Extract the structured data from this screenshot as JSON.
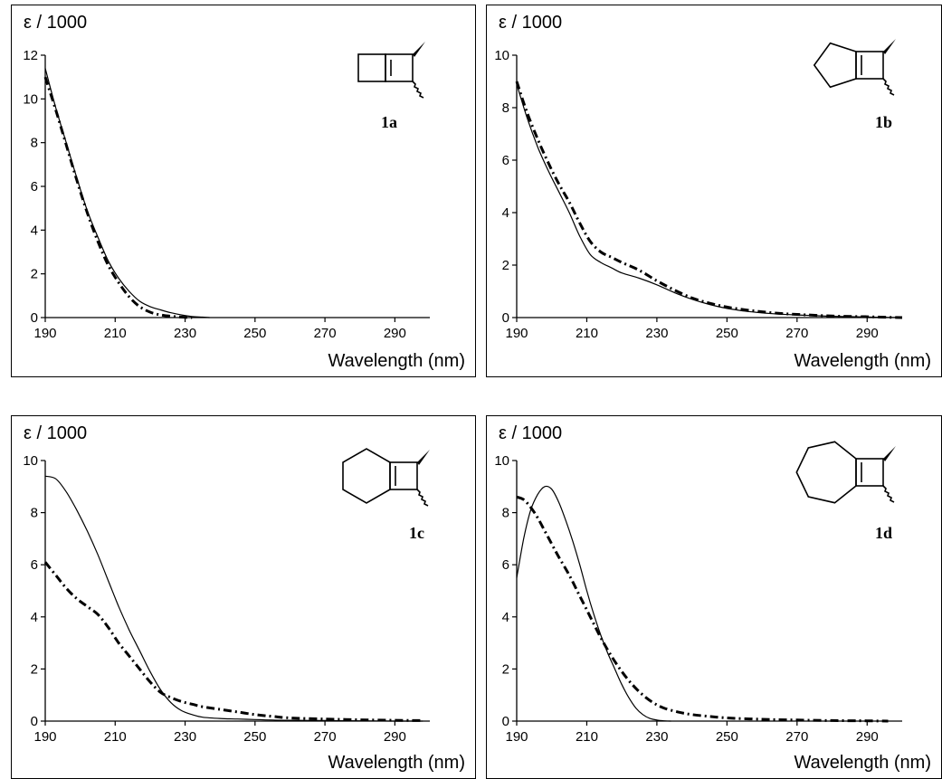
{
  "chart_data": [
    {
      "type": "line",
      "compound_label": "1a",
      "xlabel": "Wavelength (nm)",
      "ylabel": "ε / 1000",
      "xlim": [
        190,
        300
      ],
      "ylim": [
        0,
        12
      ],
      "x_ticks": [
        190,
        210,
        230,
        250,
        270,
        290
      ],
      "y_ticks": [
        0,
        2,
        4,
        6,
        8,
        10,
        12
      ],
      "grid": false,
      "legend": "none",
      "series": [
        {
          "style": "solid",
          "x": [
            190,
            193,
            196,
            199,
            202,
            205,
            208,
            211,
            214,
            217,
            220,
            223,
            226,
            229,
            232,
            235,
            237
          ],
          "y": [
            11.4,
            9.6,
            8.0,
            6.4,
            4.9,
            3.7,
            2.6,
            1.8,
            1.2,
            0.75,
            0.5,
            0.35,
            0.22,
            0.12,
            0.05,
            0.02,
            0.0
          ]
        },
        {
          "style": "dash-dot",
          "x": [
            190,
            193,
            196,
            199,
            202,
            205,
            208,
            211,
            214,
            217,
            220,
            223,
            226,
            229,
            232
          ],
          "y": [
            11.0,
            9.5,
            7.9,
            6.3,
            4.8,
            3.5,
            2.4,
            1.6,
            0.95,
            0.5,
            0.25,
            0.12,
            0.06,
            0.02,
            0.0
          ]
        }
      ]
    },
    {
      "type": "line",
      "compound_label": "1b",
      "xlabel": "Wavelength (nm)",
      "ylabel": "ε / 1000",
      "xlim": [
        190,
        300
      ],
      "ylim": [
        0,
        10
      ],
      "x_ticks": [
        190,
        210,
        230,
        250,
        270,
        290
      ],
      "y_ticks": [
        0,
        2,
        4,
        6,
        8,
        10
      ],
      "grid": false,
      "legend": "none",
      "series": [
        {
          "style": "solid",
          "x": [
            190,
            193,
            196,
            199,
            202,
            205,
            208,
            211,
            214,
            217,
            220,
            225,
            230,
            235,
            240,
            245,
            250,
            255,
            260,
            265,
            270,
            280,
            290,
            300
          ],
          "y": [
            8.9,
            7.6,
            6.5,
            5.6,
            4.8,
            4.0,
            3.1,
            2.4,
            2.1,
            1.9,
            1.7,
            1.5,
            1.25,
            0.95,
            0.7,
            0.5,
            0.35,
            0.25,
            0.18,
            0.13,
            0.1,
            0.05,
            0.02,
            0.0
          ]
        },
        {
          "style": "dash-dot",
          "x": [
            190,
            193,
            196,
            199,
            202,
            205,
            208,
            211,
            214,
            217,
            220,
            225,
            230,
            235,
            240,
            245,
            250,
            255,
            260,
            265,
            270,
            280,
            290,
            300
          ],
          "y": [
            9.0,
            7.8,
            6.8,
            5.9,
            5.1,
            4.4,
            3.6,
            2.9,
            2.5,
            2.3,
            2.1,
            1.8,
            1.4,
            1.05,
            0.75,
            0.55,
            0.4,
            0.3,
            0.22,
            0.16,
            0.12,
            0.06,
            0.03,
            0.0
          ]
        }
      ]
    },
    {
      "type": "line",
      "compound_label": "1c",
      "xlabel": "Wavelength (nm)",
      "ylabel": "ε / 1000",
      "xlim": [
        190,
        300
      ],
      "ylim": [
        0,
        10
      ],
      "x_ticks": [
        190,
        210,
        230,
        250,
        270,
        290
      ],
      "y_ticks": [
        0,
        2,
        4,
        6,
        8,
        10
      ],
      "grid": false,
      "legend": "none",
      "series": [
        {
          "style": "solid",
          "x": [
            190,
            193,
            196,
            199,
            202,
            205,
            208,
            211,
            214,
            217,
            220,
            223,
            226,
            229,
            232,
            235,
            240,
            245,
            250,
            255,
            260,
            270,
            280,
            290,
            298
          ],
          "y": [
            9.4,
            9.3,
            8.8,
            8.1,
            7.3,
            6.4,
            5.4,
            4.4,
            3.5,
            2.7,
            1.9,
            1.2,
            0.7,
            0.4,
            0.25,
            0.15,
            0.1,
            0.08,
            0.06,
            0.04,
            0.03,
            0.02,
            0.01,
            0.0,
            0.0
          ]
        },
        {
          "style": "dash-dot",
          "x": [
            190,
            193,
            196,
            199,
            202,
            205,
            208,
            211,
            214,
            217,
            220,
            223,
            226,
            229,
            232,
            235,
            240,
            245,
            250,
            255,
            260,
            270,
            280,
            290,
            298
          ],
          "y": [
            6.1,
            5.6,
            5.1,
            4.7,
            4.4,
            4.1,
            3.6,
            3.0,
            2.5,
            2.0,
            1.5,
            1.1,
            0.9,
            0.75,
            0.65,
            0.55,
            0.45,
            0.35,
            0.25,
            0.18,
            0.12,
            0.08,
            0.05,
            0.03,
            0.02
          ]
        }
      ]
    },
    {
      "type": "line",
      "compound_label": "1d",
      "xlabel": "Wavelength (nm)",
      "ylabel": "ε / 1000",
      "xlim": [
        190,
        300
      ],
      "ylim": [
        0,
        10
      ],
      "x_ticks": [
        190,
        210,
        230,
        250,
        270,
        290
      ],
      "y_ticks": [
        0,
        2,
        4,
        6,
        8,
        10
      ],
      "grid": false,
      "legend": "none",
      "series": [
        {
          "style": "solid",
          "x": [
            190,
            192,
            194,
            196,
            198,
            200,
            202,
            204,
            206,
            208,
            210,
            212,
            214,
            216,
            218,
            220,
            222,
            224,
            226,
            228,
            230,
            232,
            234
          ],
          "y": [
            5.5,
            7.0,
            8.1,
            8.7,
            9.0,
            8.9,
            8.4,
            7.7,
            6.9,
            6.0,
            5.0,
            4.1,
            3.3,
            2.6,
            2.0,
            1.4,
            0.9,
            0.5,
            0.25,
            0.1,
            0.04,
            0.01,
            0.0
          ]
        },
        {
          "style": "dash-dot",
          "x": [
            190,
            192,
            194,
            196,
            198,
            200,
            202,
            205,
            208,
            211,
            214,
            217,
            220,
            223,
            226,
            229,
            232,
            236,
            240,
            245,
            250,
            260,
            270,
            280,
            290,
            296
          ],
          "y": [
            8.6,
            8.5,
            8.2,
            7.8,
            7.3,
            6.8,
            6.3,
            5.6,
            4.8,
            4.0,
            3.2,
            2.5,
            1.9,
            1.4,
            1.0,
            0.7,
            0.5,
            0.35,
            0.25,
            0.18,
            0.12,
            0.07,
            0.04,
            0.02,
            0.01,
            0.0
          ]
        }
      ]
    }
  ]
}
